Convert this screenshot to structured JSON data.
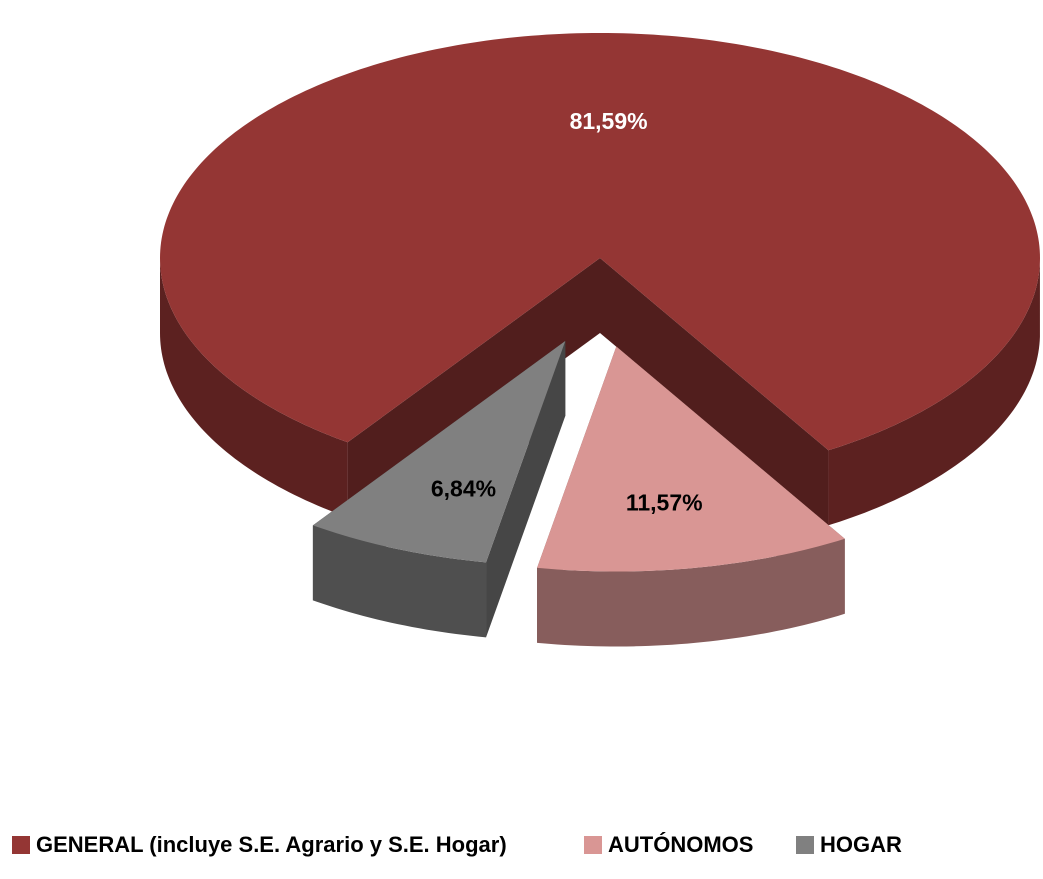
{
  "chart_data": {
    "type": "pie3d",
    "categories": [
      "GENERAL (incluye S.E. Agrario y S.E. Hogar)",
      "AUTÓNOMOS",
      "HOGAR"
    ],
    "values": [
      81.59,
      11.57,
      6.84
    ],
    "value_labels": [
      "81,59%",
      "11,57%",
      "6,84%"
    ],
    "colors": [
      "#943634",
      "#d99694",
      "#808080"
    ],
    "exploded": [
      false,
      true,
      true
    ],
    "legend": "bottom"
  }
}
